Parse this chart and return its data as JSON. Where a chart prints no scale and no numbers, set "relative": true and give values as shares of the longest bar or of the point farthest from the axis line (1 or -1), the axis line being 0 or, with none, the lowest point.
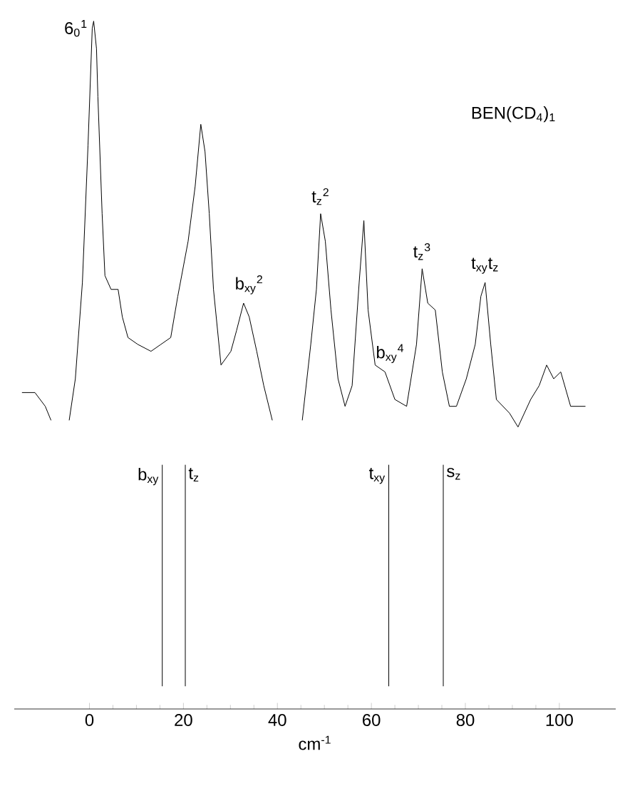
{
  "chart_data": {
    "type": "line",
    "title": "BEN(CD$_{4}$)$_{1}$",
    "relative": true,
    "color": "#000000",
    "xlabel": "cm$^{-1}$",
    "xlim": [
      -16,
      112
    ],
    "xticks": [
      0,
      20,
      40,
      60,
      80,
      100
    ],
    "x": [
      -14.3,
      -13.1,
      -11.6,
      -9.4,
      -8.2,
      -6.0,
      -4.3,
      -3.0,
      -1.5,
      -0.3,
      0.6,
      0.9,
      1.5,
      1.8,
      2.7,
      3.3,
      4.6,
      6.1,
      7.0,
      8.2,
      10.3,
      13.1,
      15.2,
      17.3,
      18.8,
      21.0,
      22.5,
      23.7,
      24.6,
      25.5,
      26.4,
      28.0,
      30.1,
      31.3,
      32.8,
      34.0,
      35.6,
      37.1,
      38.9,
      42.0,
      45.3,
      47.1,
      48.3,
      49.2,
      50.2,
      51.4,
      52.9,
      54.4,
      55.9,
      57.4,
      58.4,
      59.3,
      60.8,
      62.9,
      65.0,
      67.5,
      69.6,
      70.8,
      72.0,
      73.6,
      75.1,
      76.6,
      78.1,
      80.2,
      82.1,
      83.3,
      84.2,
      85.4,
      86.6,
      89.4,
      91.2,
      93.9,
      95.7,
      97.3,
      98.8,
      100.3,
      102.4,
      105.5
    ],
    "values": [
      0.46,
      0.46,
      0.46,
      0.44,
      0.42,
      null,
      0.42,
      0.48,
      0.62,
      0.82,
      0.99,
      1.0,
      0.96,
      0.89,
      0.72,
      0.63,
      0.61,
      0.61,
      0.57,
      0.54,
      0.53,
      0.52,
      0.53,
      0.54,
      0.6,
      0.68,
      0.76,
      0.85,
      0.81,
      0.72,
      0.61,
      0.5,
      0.52,
      0.55,
      0.59,
      0.57,
      0.52,
      0.47,
      0.42,
      null,
      0.42,
      0.53,
      0.61,
      0.72,
      0.68,
      0.58,
      0.48,
      0.44,
      0.47,
      0.62,
      0.71,
      0.58,
      0.5,
      0.49,
      0.45,
      0.44,
      0.53,
      0.64,
      0.59,
      0.58,
      0.49,
      0.44,
      0.44,
      0.48,
      0.53,
      0.6,
      0.62,
      0.53,
      0.45,
      0.43,
      0.41,
      0.45,
      0.47,
      0.5,
      0.48,
      0.49,
      0.44,
      0.44
    ],
    "annotations": [
      {
        "text": "6$_{0}$$^{1}$",
        "x": 0.9,
        "y": 1.0
      },
      {
        "text": "b$_{xy}$$^{2}$",
        "x": 34.0,
        "y": 0.59
      },
      {
        "text": "t$_{z}$$^{2}$",
        "x": 49.2,
        "y": 0.72
      },
      {
        "text": "b$_{xy}$$^{4}$",
        "x": 64.0,
        "y": 0.49
      },
      {
        "text": "t$_{z}$$^{3}$",
        "x": 70.8,
        "y": 0.64
      },
      {
        "text": "t$_{xy}$t$_{z}$",
        "x": 84.2,
        "y": 0.62
      }
    ],
    "ref_lines": [
      {
        "axis": "x",
        "value": 15.5,
        "label": "b$_{xy}$"
      },
      {
        "axis": "x",
        "value": 20.4,
        "label": "t$_{z}$"
      },
      {
        "axis": "x",
        "value": 63.7,
        "label": "t$_{xy}$"
      },
      {
        "axis": "x",
        "value": 75.3,
        "label": "s$_{z}$"
      }
    ]
  }
}
